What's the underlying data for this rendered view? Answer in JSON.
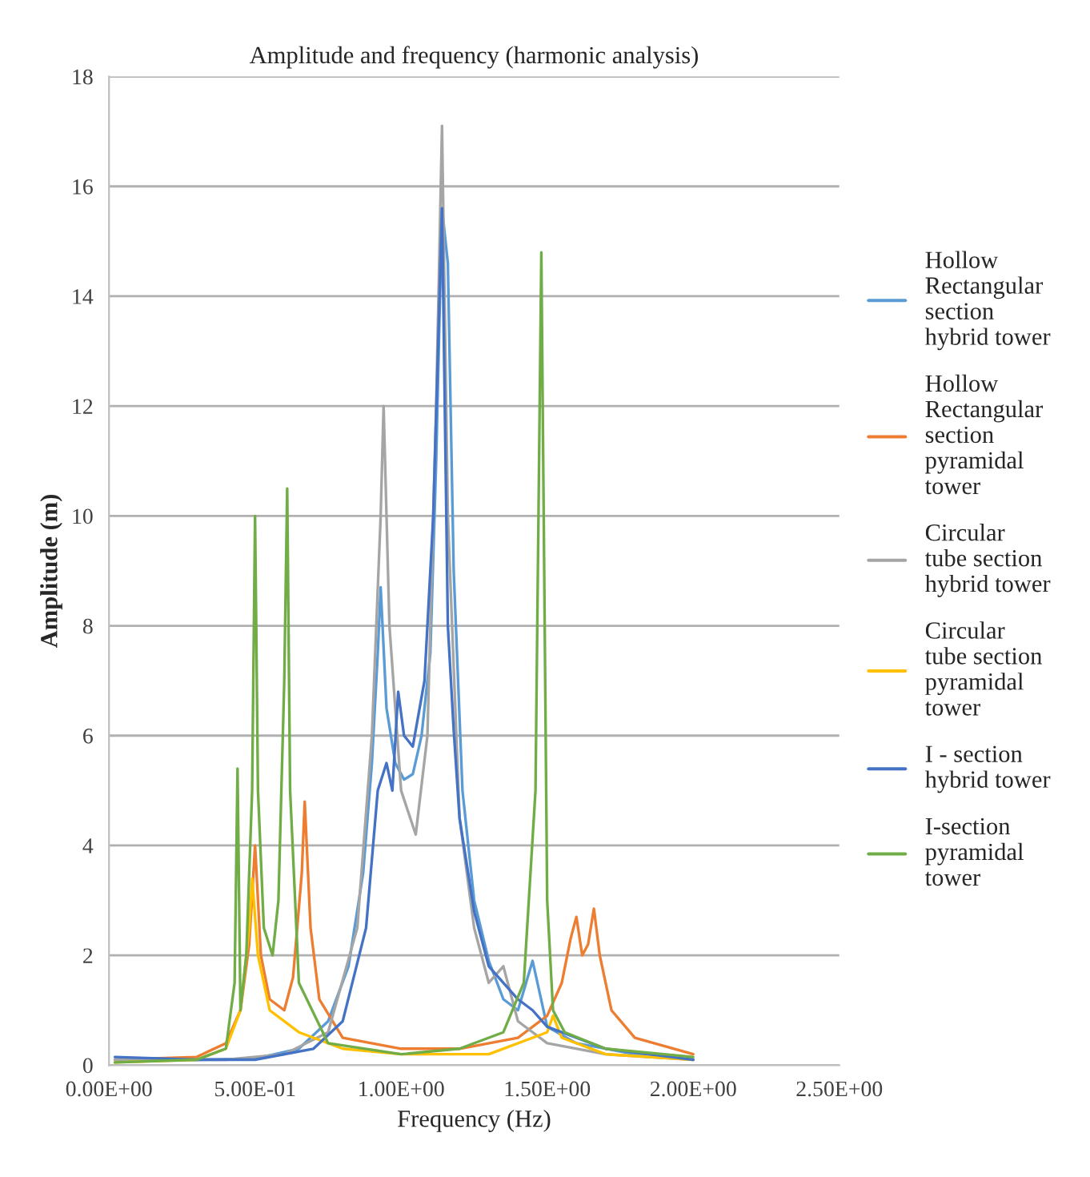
{
  "chart_data": {
    "type": "line",
    "title": "Amplitude and frequency (harmonic analysis)",
    "xlabel": "Frequency (Hz)",
    "ylabel": "Amplitude (m)",
    "xlim": [
      0,
      2.5
    ],
    "xticks": [
      {
        "value": 0,
        "label": "0.00E+00"
      },
      {
        "value": 0.5,
        "label": "5.00E-01"
      },
      {
        "value": 1.0,
        "label": "1.00E+00"
      },
      {
        "value": 1.5,
        "label": "1.50E+00"
      },
      {
        "value": 2.0,
        "label": "2.00E+00"
      },
      {
        "value": 2.5,
        "label": "2.50E+00"
      }
    ],
    "ylim": [
      0,
      18
    ],
    "yticks": [
      0,
      2,
      4,
      6,
      8,
      10,
      12,
      14,
      16,
      18
    ],
    "grid": "y",
    "legend": "right",
    "marker": "none",
    "line_style": "solid",
    "series": [
      {
        "name": "Hollow Rectangular section hybrid tower",
        "color": "#5b9bd5",
        "x": [
          0.02,
          0.3,
          0.5,
          0.65,
          0.75,
          0.82,
          0.87,
          0.9,
          0.92,
          0.93,
          0.95,
          0.98,
          1.01,
          1.04,
          1.07,
          1.1,
          1.12,
          1.14,
          1.16,
          1.18,
          1.21,
          1.25,
          1.3,
          1.35,
          1.4,
          1.45,
          1.5,
          1.6,
          1.8,
          2.0
        ],
        "values": [
          0.1,
          0.1,
          0.12,
          0.3,
          0.8,
          1.8,
          3.5,
          5.5,
          7.5,
          8.7,
          6.5,
          5.5,
          5.2,
          5.3,
          6.0,
          7.5,
          11,
          15.6,
          14.6,
          9,
          5,
          3,
          1.9,
          1.2,
          1.0,
          1.9,
          0.7,
          0.4,
          0.2,
          0.1
        ]
      },
      {
        "name": "Hollow Rectangular section pyramidal tower",
        "color": "#ed7d31",
        "x": [
          0.02,
          0.3,
          0.4,
          0.45,
          0.48,
          0.5,
          0.52,
          0.55,
          0.6,
          0.63,
          0.66,
          0.67,
          0.69,
          0.72,
          0.8,
          1.0,
          1.2,
          1.4,
          1.5,
          1.55,
          1.58,
          1.6,
          1.62,
          1.64,
          1.66,
          1.68,
          1.72,
          1.8,
          2.0
        ],
        "values": [
          0.1,
          0.15,
          0.4,
          1.0,
          2.2,
          4.0,
          2.0,
          1.2,
          1.0,
          1.6,
          3.5,
          4.8,
          2.5,
          1.2,
          0.5,
          0.3,
          0.3,
          0.5,
          0.9,
          1.5,
          2.3,
          2.7,
          2.0,
          2.2,
          2.85,
          2.0,
          1.0,
          0.5,
          0.2
        ]
      },
      {
        "name": "Circular tube section hybrid tower",
        "color": "#a5a5a5",
        "x": [
          0.02,
          0.4,
          0.6,
          0.75,
          0.85,
          0.9,
          0.93,
          0.94,
          0.96,
          1.0,
          1.05,
          1.09,
          1.12,
          1.14,
          1.16,
          1.2,
          1.25,
          1.3,
          1.35,
          1.4,
          1.5,
          1.7,
          2.0
        ],
        "values": [
          0.1,
          0.1,
          0.2,
          0.6,
          2.5,
          6,
          10,
          12,
          8,
          5,
          4.2,
          6,
          12,
          17.1,
          10,
          4.5,
          2.5,
          1.5,
          1.8,
          0.8,
          0.4,
          0.2,
          0.1
        ]
      },
      {
        "name": "Circular tube section pyramidal tower",
        "color": "#ffc000",
        "x": [
          0.02,
          0.3,
          0.4,
          0.45,
          0.48,
          0.49,
          0.51,
          0.55,
          0.65,
          0.8,
          1.0,
          1.3,
          1.5,
          1.52,
          1.55,
          1.7,
          2.0
        ],
        "values": [
          0.05,
          0.1,
          0.3,
          1.0,
          2.5,
          3.4,
          2.0,
          1.0,
          0.6,
          0.3,
          0.2,
          0.2,
          0.6,
          0.9,
          0.5,
          0.2,
          0.1
        ]
      },
      {
        "name": "I - section hybrid tower",
        "color": "#4472c4",
        "x": [
          0.02,
          0.3,
          0.5,
          0.7,
          0.8,
          0.88,
          0.92,
          0.95,
          0.97,
          0.99,
          1.01,
          1.04,
          1.08,
          1.11,
          1.14,
          1.16,
          1.18,
          1.2,
          1.25,
          1.3,
          1.4,
          1.45,
          1.5,
          1.7,
          2.0
        ],
        "values": [
          0.15,
          0.1,
          0.1,
          0.3,
          0.8,
          2.5,
          5,
          5.5,
          5.0,
          6.8,
          6.0,
          5.8,
          7,
          10,
          15.6,
          8,
          6.1,
          4.5,
          2.8,
          1.8,
          1.2,
          1.0,
          0.7,
          0.3,
          0.1
        ]
      },
      {
        "name": "I-section pyramidal tower",
        "color": "#70ad47",
        "x": [
          0.02,
          0.3,
          0.4,
          0.43,
          0.44,
          0.45,
          0.47,
          0.49,
          0.5,
          0.51,
          0.53,
          0.56,
          0.58,
          0.6,
          0.61,
          0.62,
          0.65,
          0.75,
          1.0,
          1.2,
          1.35,
          1.42,
          1.46,
          1.48,
          1.5,
          1.52,
          1.56,
          1.7,
          2.0
        ],
        "values": [
          0.05,
          0.1,
          0.3,
          1.5,
          5.4,
          1.0,
          2,
          5,
          10,
          5,
          2.5,
          2.0,
          3,
          7,
          10.5,
          5,
          1.5,
          0.4,
          0.2,
          0.3,
          0.6,
          1.5,
          5,
          14.8,
          3,
          1.0,
          0.6,
          0.3,
          0.15
        ]
      }
    ]
  }
}
